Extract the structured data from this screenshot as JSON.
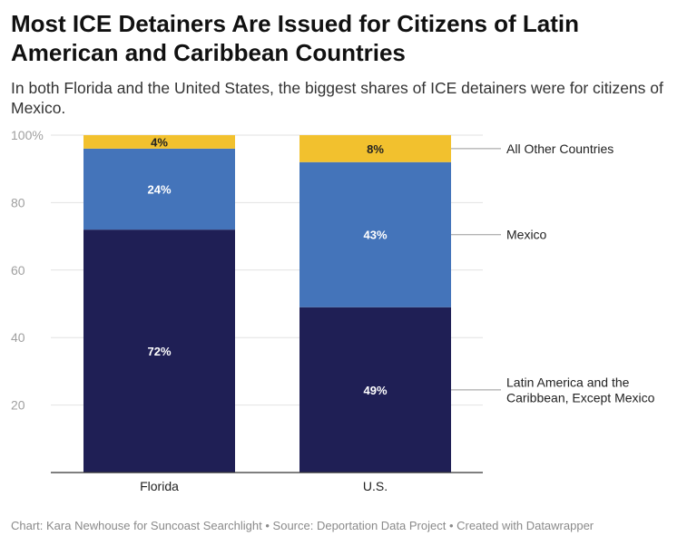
{
  "header": {
    "title": "Most ICE Detainers Are Issued for Citizens of Latin American and Caribbean Countries",
    "subtitle": "In both Florida and the United States, the biggest shares of ICE detainers were for citizens of Mexico."
  },
  "footer": {
    "chart_credit": "Chart: Kara Newhouse for Suncoast Searchlight",
    "separator": " • ",
    "source": "Source: Deportation Data Project",
    "created_with": "Created with Datawrapper"
  },
  "chart_data": {
    "type": "bar",
    "stacked": true,
    "categories": [
      "Florida",
      "U.S."
    ],
    "series": [
      {
        "name": "Latin America and the Caribbean, Except Mexico",
        "values": [
          72,
          49
        ],
        "labels": [
          "72%",
          "49%"
        ],
        "color": "#1f1f55"
      },
      {
        "name": "Mexico",
        "values": [
          24,
          43
        ],
        "labels": [
          "24%",
          "43%"
        ],
        "color": "#4474ba"
      },
      {
        "name": "All Other Countries",
        "values": [
          4,
          8
        ],
        "labels": [
          "4%",
          "8%"
        ],
        "color": "#f2c12e"
      }
    ],
    "y_ticks": [
      "20",
      "40",
      "60",
      "80",
      "100%"
    ],
    "y_tick_values": [
      20,
      40,
      60,
      80,
      100
    ],
    "ylim": [
      0,
      100
    ],
    "grid": true,
    "legend": "direct labels on right"
  }
}
